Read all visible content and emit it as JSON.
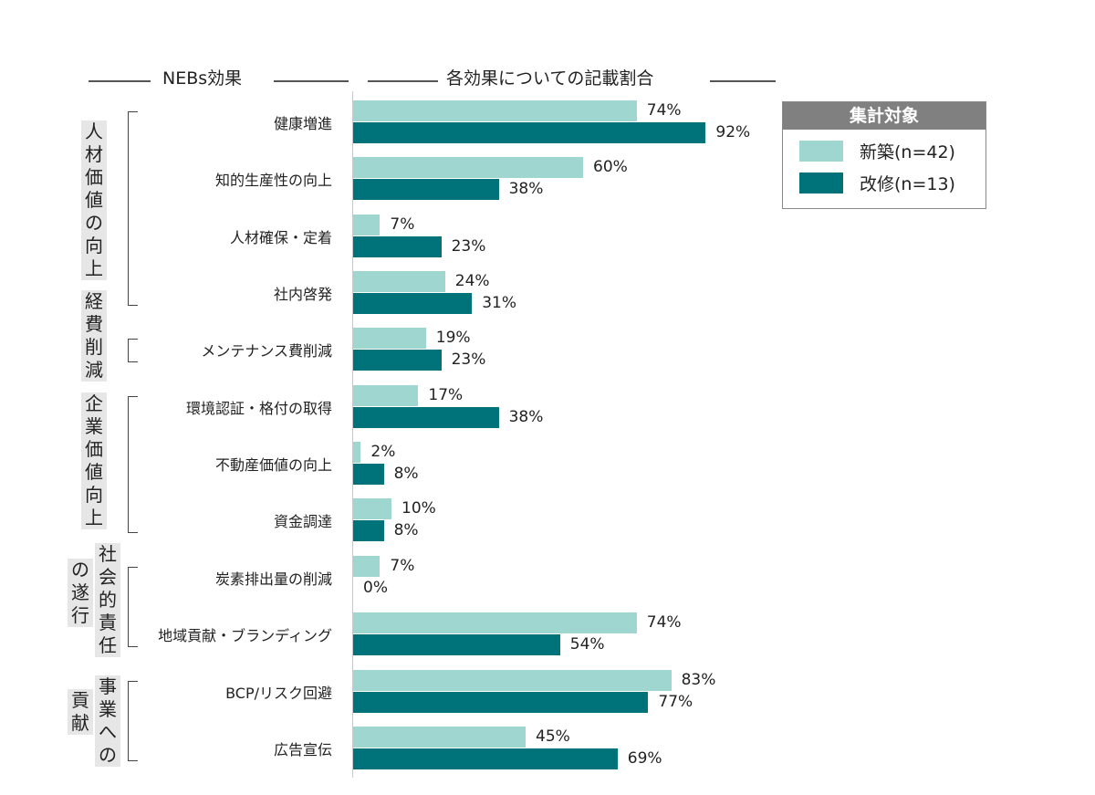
{
  "chart_data": {
    "type": "bar",
    "orientation": "horizontal",
    "header_left": "NEBs効果",
    "header_right": "各効果についての記載割合",
    "categories": [
      "健康増進",
      "知的生産性の向上",
      "人材確保・定着",
      "社内啓発",
      "メンテナンス費削減",
      "環境認証・格付の取得",
      "不動産価値の向上",
      "資金調達",
      "炭素排出量の削減",
      "地域貢献・ブランディング",
      "BCP/リスク回避",
      "広告宣伝"
    ],
    "groups": [
      {
        "label_parts": [
          "人材価値の向上"
        ],
        "start": 0,
        "end": 3
      },
      {
        "label_parts": [
          "経費削減"
        ],
        "start": 4,
        "end": 4
      },
      {
        "label_parts": [
          "企業価値向上"
        ],
        "start": 5,
        "end": 7
      },
      {
        "label_parts": [
          "社会的責任",
          "の遂行"
        ],
        "start": 8,
        "end": 9
      },
      {
        "label_parts": [
          "事業への",
          "貢献"
        ],
        "start": 10,
        "end": 11
      }
    ],
    "series": [
      {
        "name": "新築(n=42)",
        "color": "#9fd6d0",
        "values": [
          74,
          60,
          7,
          24,
          19,
          17,
          2,
          10,
          7,
          74,
          83,
          45
        ]
      },
      {
        "name": "改修(n=13)",
        "color": "#00737a",
        "values": [
          92,
          38,
          23,
          31,
          23,
          38,
          8,
          8,
          0,
          54,
          77,
          69
        ]
      }
    ],
    "value_suffix": "%",
    "xlim": [
      0,
      100
    ],
    "legend": {
      "title": "集計対象",
      "placement": "top-right"
    }
  }
}
